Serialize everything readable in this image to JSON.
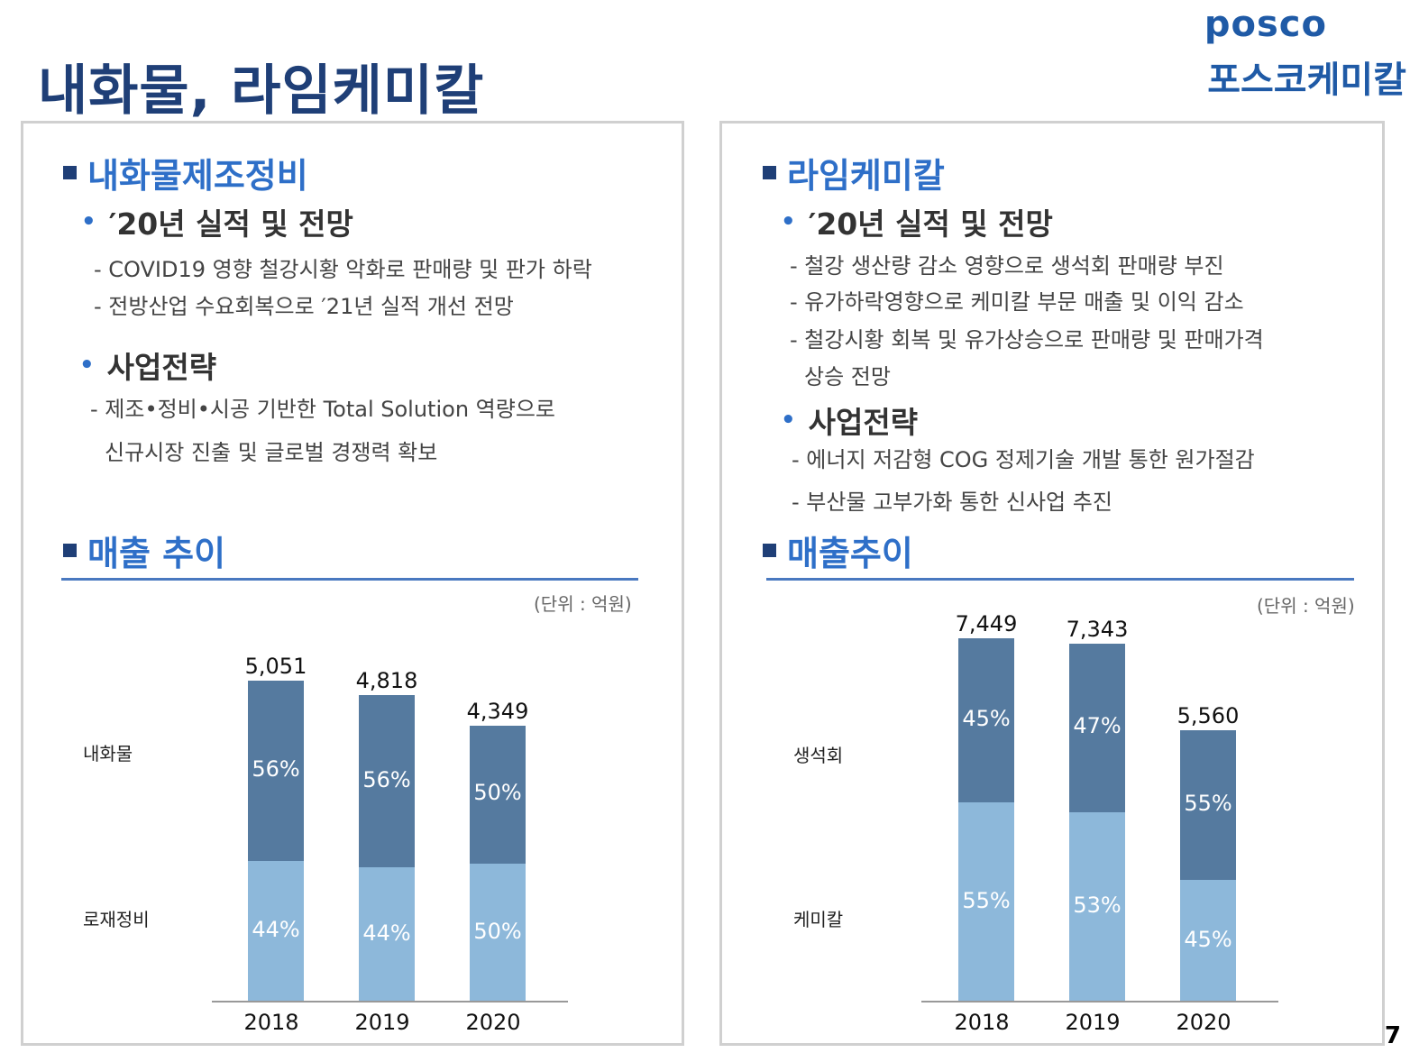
{
  "header": {
    "title": "내화물, 라임케미칼",
    "logo_en": "posco",
    "logo_ko": "포스코케미칼",
    "page_number": "7"
  },
  "colors": {
    "brand": "#1f5aa6",
    "accent": "#2e6fc8",
    "series_dark": "#557a9f",
    "series_light": "#8db8da"
  },
  "left": {
    "section_title": "내화물제조정비",
    "results_heading": "′20년 실적 및 전망",
    "results_lines": [
      "- COVID19 영향 철강시황 악화로 판매량 및 판가 하락",
      "- 전방산업 수요회복으로 ′21년 실적 개선 전망"
    ],
    "strategy_heading": "사업전략",
    "strategy_lines": [
      "- 제조•정비•시공 기반한 Total Solution 역량으로",
      "신규시장 진출 및 글로벌 경쟁력 확보"
    ],
    "sales_title": "매출 추이",
    "unit": "(단위 : 억원)"
  },
  "right": {
    "section_title": "라임케미칼",
    "results_heading": "′20년 실적 및 전망",
    "results_lines": [
      "- 철강 생산량 감소 영향으로 생석회 판매량 부진",
      "- 유가하락영향으로 케미칼 부문 매출 및 이익 감소",
      "- 철강시황 회복 및 유가상승으로 판매량 및 판매가격",
      "상승 전망"
    ],
    "strategy_heading": "사업전략",
    "strategy_lines": [
      "- 에너지 저감형 COG 정제기술 개발 통한 원가절감",
      "- 부산물 고부가화 통한 신사업 추진"
    ],
    "sales_title": "매출추이",
    "unit": "(단위 : 억원)"
  },
  "chart_data": [
    {
      "type": "bar",
      "stacked": true,
      "title": "매출 추이",
      "unit": "억원",
      "categories": [
        "2018",
        "2019",
        "2020"
      ],
      "totals": [
        5051,
        4818,
        4349
      ],
      "total_labels": [
        "5,051",
        "4,818",
        "4,349"
      ],
      "series": [
        {
          "name": "로재정비",
          "position": "bottom",
          "shares": [
            44,
            44,
            50
          ],
          "labels": [
            "44%",
            "44%",
            "50%"
          ]
        },
        {
          "name": "내화물",
          "position": "top",
          "shares": [
            56,
            56,
            50
          ],
          "labels": [
            "56%",
            "56%",
            "50%"
          ]
        }
      ],
      "ylim": [
        0,
        5800
      ]
    },
    {
      "type": "bar",
      "stacked": true,
      "title": "매출추이",
      "unit": "억원",
      "categories": [
        "2018",
        "2019",
        "2020"
      ],
      "totals": [
        7449,
        7343,
        5560
      ],
      "total_labels": [
        "7,449",
        "7,343",
        "5,560"
      ],
      "series": [
        {
          "name": "케미칼",
          "position": "bottom",
          "shares": [
            55,
            53,
            45
          ],
          "labels": [
            "55%",
            "53%",
            "45%"
          ]
        },
        {
          "name": "생석회",
          "position": "top",
          "shares": [
            45,
            47,
            55
          ],
          "labels": [
            "45%",
            "47%",
            "55%"
          ]
        }
      ],
      "ylim": [
        0,
        7449
      ]
    }
  ]
}
